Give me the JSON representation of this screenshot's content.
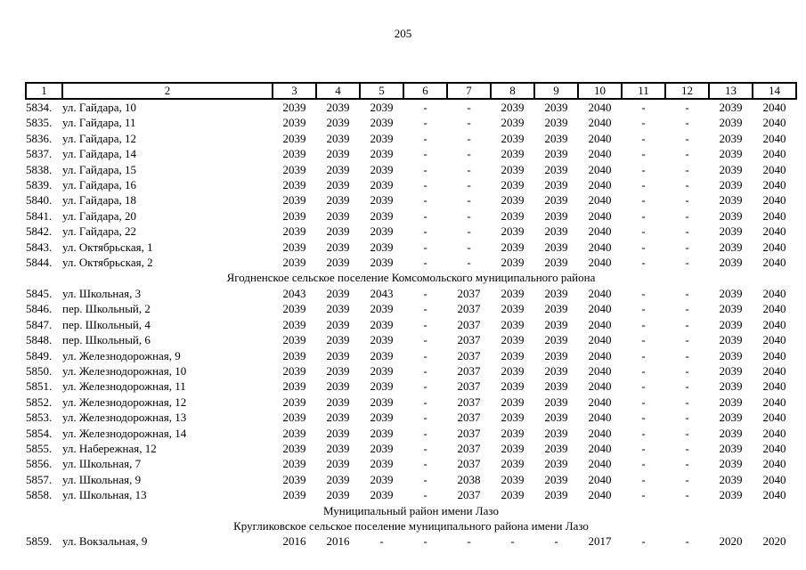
{
  "page_number": "205",
  "table": {
    "columns": [
      "1",
      "2",
      "3",
      "4",
      "5",
      "6",
      "7",
      "8",
      "9",
      "10",
      "11",
      "12",
      "13",
      "14"
    ],
    "rows": [
      {
        "type": "data",
        "num": "5834.",
        "address": "ул. Гайдара, 10",
        "values": [
          "2039",
          "2039",
          "2039",
          "-",
          "-",
          "2039",
          "2039",
          "2040",
          "-",
          "-",
          "2039",
          "2040"
        ]
      },
      {
        "type": "data",
        "num": "5835.",
        "address": "ул. Гайдара, 11",
        "values": [
          "2039",
          "2039",
          "2039",
          "-",
          "-",
          "2039",
          "2039",
          "2040",
          "-",
          "-",
          "2039",
          "2040"
        ]
      },
      {
        "type": "data",
        "num": "5836.",
        "address": "ул. Гайдара, 12",
        "values": [
          "2039",
          "2039",
          "2039",
          "-",
          "-",
          "2039",
          "2039",
          "2040",
          "-",
          "-",
          "2039",
          "2040"
        ]
      },
      {
        "type": "data",
        "num": "5837.",
        "address": "ул. Гайдара, 14",
        "values": [
          "2039",
          "2039",
          "2039",
          "-",
          "-",
          "2039",
          "2039",
          "2040",
          "-",
          "-",
          "2039",
          "2040"
        ]
      },
      {
        "type": "data",
        "num": "5838.",
        "address": "ул. Гайдара, 15",
        "values": [
          "2039",
          "2039",
          "2039",
          "-",
          "-",
          "2039",
          "2039",
          "2040",
          "-",
          "-",
          "2039",
          "2040"
        ]
      },
      {
        "type": "data",
        "num": "5839.",
        "address": "ул. Гайдара, 16",
        "values": [
          "2039",
          "2039",
          "2039",
          "-",
          "-",
          "2039",
          "2039",
          "2040",
          "-",
          "-",
          "2039",
          "2040"
        ]
      },
      {
        "type": "data",
        "num": "5840.",
        "address": "ул. Гайдара, 18",
        "values": [
          "2039",
          "2039",
          "2039",
          "-",
          "-",
          "2039",
          "2039",
          "2040",
          "-",
          "-",
          "2039",
          "2040"
        ]
      },
      {
        "type": "data",
        "num": "5841.",
        "address": "ул. Гайдара, 20",
        "values": [
          "2039",
          "2039",
          "2039",
          "-",
          "-",
          "2039",
          "2039",
          "2040",
          "-",
          "-",
          "2039",
          "2040"
        ]
      },
      {
        "type": "data",
        "num": "5842.",
        "address": "ул. Гайдара, 22",
        "values": [
          "2039",
          "2039",
          "2039",
          "-",
          "-",
          "2039",
          "2039",
          "2040",
          "-",
          "-",
          "2039",
          "2040"
        ]
      },
      {
        "type": "data",
        "num": "5843.",
        "address": "ул. Октябрьская, 1",
        "values": [
          "2039",
          "2039",
          "2039",
          "-",
          "-",
          "2039",
          "2039",
          "2040",
          "-",
          "-",
          "2039",
          "2040"
        ]
      },
      {
        "type": "data",
        "num": "5844.",
        "address": "ул. Октябрьская, 2",
        "values": [
          "2039",
          "2039",
          "2039",
          "-",
          "-",
          "2039",
          "2039",
          "2040",
          "-",
          "-",
          "2039",
          "2040"
        ]
      },
      {
        "type": "section",
        "label": "Ягодненское сельское поселение Комсомольского муниципального района"
      },
      {
        "type": "data",
        "num": "5845.",
        "address": "ул. Школьная, 3",
        "values": [
          "2043",
          "2039",
          "2043",
          "-",
          "2037",
          "2039",
          "2039",
          "2040",
          "-",
          "-",
          "2039",
          "2040"
        ]
      },
      {
        "type": "data",
        "num": "5846.",
        "address": "пер. Школьный, 2",
        "values": [
          "2039",
          "2039",
          "2039",
          "-",
          "2037",
          "2039",
          "2039",
          "2040",
          "-",
          "-",
          "2039",
          "2040"
        ]
      },
      {
        "type": "data",
        "num": "5847.",
        "address": "пер. Школьный, 4",
        "values": [
          "2039",
          "2039",
          "2039",
          "-",
          "2037",
          "2039",
          "2039",
          "2040",
          "-",
          "-",
          "2039",
          "2040"
        ]
      },
      {
        "type": "data",
        "num": "5848.",
        "address": "пер. Школьный, 6",
        "values": [
          "2039",
          "2039",
          "2039",
          "-",
          "2037",
          "2039",
          "2039",
          "2040",
          "-",
          "-",
          "2039",
          "2040"
        ]
      },
      {
        "type": "data",
        "num": "5849.",
        "address": "ул. Железнодорожная, 9",
        "values": [
          "2039",
          "2039",
          "2039",
          "-",
          "2037",
          "2039",
          "2039",
          "2040",
          "-",
          "-",
          "2039",
          "2040"
        ]
      },
      {
        "type": "data",
        "num": "5850.",
        "address": "ул. Железнодорожная, 10",
        "values": [
          "2039",
          "2039",
          "2039",
          "-",
          "2037",
          "2039",
          "2039",
          "2040",
          "-",
          "-",
          "2039",
          "2040"
        ]
      },
      {
        "type": "data",
        "num": "5851.",
        "address": "ул. Железнодорожная, 11",
        "values": [
          "2039",
          "2039",
          "2039",
          "-",
          "2037",
          "2039",
          "2039",
          "2040",
          "-",
          "-",
          "2039",
          "2040"
        ]
      },
      {
        "type": "data",
        "num": "5852.",
        "address": "ул. Железнодорожная, 12",
        "values": [
          "2039",
          "2039",
          "2039",
          "-",
          "2037",
          "2039",
          "2039",
          "2040",
          "-",
          "-",
          "2039",
          "2040"
        ]
      },
      {
        "type": "data",
        "num": "5853.",
        "address": "ул. Железнодорожная, 13",
        "values": [
          "2039",
          "2039",
          "2039",
          "-",
          "2037",
          "2039",
          "2039",
          "2040",
          "-",
          "-",
          "2039",
          "2040"
        ]
      },
      {
        "type": "data",
        "num": "5854.",
        "address": "ул. Железнодорожная, 14",
        "values": [
          "2039",
          "2039",
          "2039",
          "-",
          "2037",
          "2039",
          "2039",
          "2040",
          "-",
          "-",
          "2039",
          "2040"
        ]
      },
      {
        "type": "data",
        "num": "5855.",
        "address": "ул. Набережная, 12",
        "values": [
          "2039",
          "2039",
          "2039",
          "-",
          "2037",
          "2039",
          "2039",
          "2040",
          "-",
          "-",
          "2039",
          "2040"
        ]
      },
      {
        "type": "data",
        "num": "5856.",
        "address": "ул. Школьная, 7",
        "values": [
          "2039",
          "2039",
          "2039",
          "-",
          "2037",
          "2039",
          "2039",
          "2040",
          "-",
          "-",
          "2039",
          "2040"
        ]
      },
      {
        "type": "data",
        "num": "5857.",
        "address": "ул. Школьная, 9",
        "values": [
          "2039",
          "2039",
          "2039",
          "-",
          "2038",
          "2039",
          "2039",
          "2040",
          "-",
          "-",
          "2039",
          "2040"
        ]
      },
      {
        "type": "data",
        "num": "5858.",
        "address": "ул. Школьная, 13",
        "values": [
          "2039",
          "2039",
          "2039",
          "-",
          "2037",
          "2039",
          "2039",
          "2040",
          "-",
          "-",
          "2039",
          "2040"
        ]
      },
      {
        "type": "section",
        "label": "Муниципальный район имени Лазо"
      },
      {
        "type": "section",
        "label": "Кругликовское сельское поселение муниципального района имени Лазо"
      },
      {
        "type": "data",
        "num": "5859.",
        "address": "ул. Вокзальная, 9",
        "values": [
          "2016",
          "2016",
          "-",
          "-",
          "-",
          "-",
          "-",
          "2017",
          "-",
          "-",
          "2020",
          "2020"
        ]
      }
    ]
  }
}
